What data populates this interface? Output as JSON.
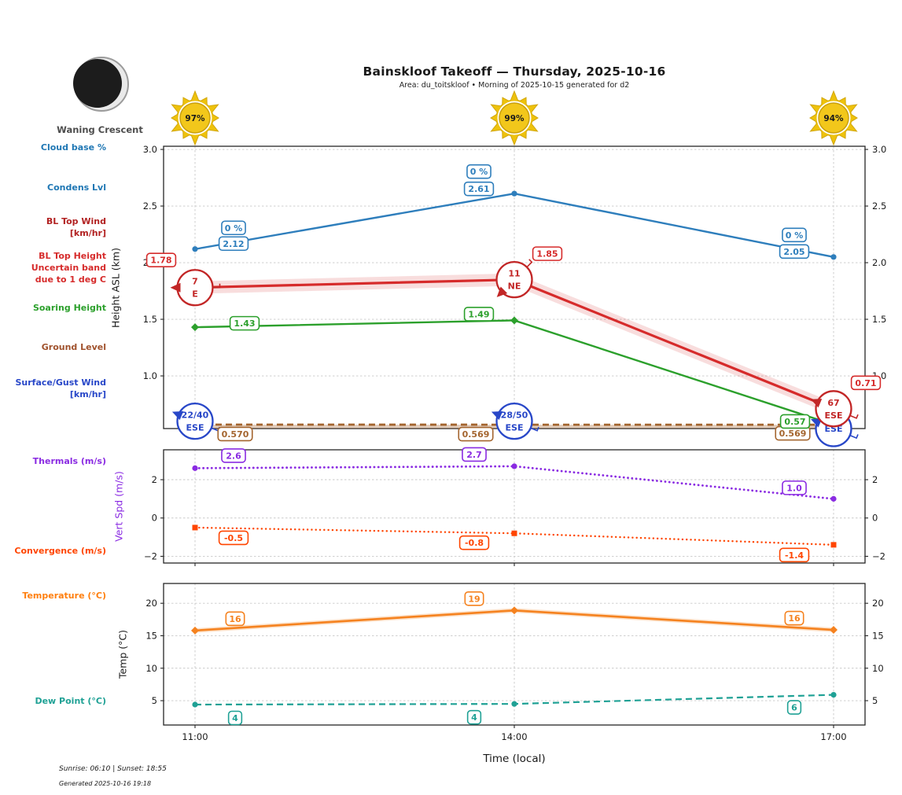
{
  "header": {
    "title": "Bainskloof Takeoff — Thursday, 2025-10-16",
    "subtitle": "Area: du_toitskloof • Morning of 2025-10-15 generated for d2"
  },
  "moon": {
    "phase_label": "Waning Crescent"
  },
  "suns": [
    {
      "time": "11:00",
      "percent": "97%"
    },
    {
      "time": "14:00",
      "percent": "99%"
    },
    {
      "time": "17:00",
      "percent": "94%"
    }
  ],
  "left_legend": [
    {
      "id": "cloud-base",
      "lines": [
        "Cloud base %"
      ],
      "color": "#1f77b4"
    },
    {
      "id": "condens-lvl",
      "lines": [
        "Condens Lvl"
      ],
      "color": "#1f77b4"
    },
    {
      "id": "bl-top-wind",
      "lines": [
        "BL Top Wind",
        "[km/hr]"
      ],
      "color": "#b22222"
    },
    {
      "id": "bl-top-height",
      "lines": [
        "BL Top Height",
        "Uncertain band",
        "due to 1 deg C"
      ],
      "color": "#d62b2b"
    },
    {
      "id": "soaring-height",
      "lines": [
        "Soaring Height"
      ],
      "color": "#2ca02c"
    },
    {
      "id": "ground-level",
      "lines": [
        "Ground Level"
      ],
      "color": "#a0522d"
    },
    {
      "id": "surface-gust-wind",
      "lines": [
        "Surface/Gust Wind",
        "[km/hr]"
      ],
      "color": "#2847c8"
    },
    {
      "id": "thermals",
      "lines": [
        "Thermals (m/s)"
      ],
      "color": "#8a2be2"
    },
    {
      "id": "convergence",
      "lines": [
        "Convergence (m/s)"
      ],
      "color": "#ff4500"
    },
    {
      "id": "temperature",
      "lines": [
        "Temperature (°C)"
      ],
      "color": "#ff7f0e"
    },
    {
      "id": "dew-point",
      "lines": [
        "Dew Point (°C)"
      ],
      "color": "#1fa195"
    }
  ],
  "x_axis": {
    "label": "Time (local)",
    "ticks": [
      "11:00",
      "14:00",
      "17:00"
    ]
  },
  "chart_data": [
    {
      "id": "height",
      "type": "line",
      "ylabel": "Height ASL (km)",
      "ylim": [
        0.535,
        3.028
      ],
      "yticks": [
        {
          "v": 3.0,
          "label": "3.0"
        },
        {
          "v": 2.5,
          "label": "2.5"
        },
        {
          "v": 2.0,
          "label": "2.0"
        },
        {
          "v": 1.5,
          "label": "1.5"
        },
        {
          "v": 1.0,
          "label": "1.0"
        }
      ],
      "categories": [
        "11:00",
        "14:00",
        "17:00"
      ],
      "grid": true,
      "series": [
        {
          "name": "ground-level",
          "legend": "Ground Level",
          "color": "#a4652f",
          "line": "dashed",
          "width": 2.8,
          "marker": "none",
          "fill_below": "rgba(164,101,47,0.32)",
          "values": [
            0.57,
            0.569,
            0.569
          ],
          "labels": [
            {
              "text": "0.570",
              "dx": 51,
              "dy": 12
            },
            {
              "text": "0.569",
              "dx": -49,
              "dy": 12
            },
            {
              "text": "0.569",
              "dx": -52,
              "dy": 11
            }
          ]
        },
        {
          "name": "condens-lvl",
          "legend": "Condens Lvl",
          "color": "#2e7ebc",
          "line": "solid",
          "width": 2.4,
          "marker": "circle",
          "values": [
            2.12,
            2.61,
            2.05
          ],
          "labels": [
            {
              "text": "2.12",
              "dx": 49,
              "dy": -7
            },
            {
              "text": "2.61",
              "dx": -45,
              "dy": -6
            },
            {
              "text": "2.05",
              "dx": -50,
              "dy": -7
            }
          ],
          "labels2": [
            {
              "text": "0 %",
              "dx": 49,
              "dy": -27
            },
            {
              "text": "0 %",
              "dx": -45,
              "dy": -28
            },
            {
              "text": "0 %",
              "dx": -50,
              "dy": -28
            }
          ]
        },
        {
          "name": "soaring-height",
          "legend": "Soaring Height",
          "color": "#2ca02c",
          "line": "solid",
          "width": 2.4,
          "marker": "diamond",
          "values": [
            1.43,
            1.49,
            0.57
          ],
          "labels": [
            {
              "text": "1.43",
              "dx": 63,
              "dy": -5
            },
            {
              "text": "1.49",
              "dx": -45,
              "dy": -8
            },
            {
              "text": "0.57",
              "dx": -49,
              "dy": -4
            }
          ]
        },
        {
          "name": "bl-top-height",
          "legend": "BL Top Height",
          "color": "#d62b2b",
          "line": "solid",
          "width": 3.2,
          "marker": "none",
          "band": 0.055,
          "band_color": "rgba(214,43,43,0.16)",
          "values": [
            1.78,
            1.85,
            0.71
          ],
          "labels": [
            {
              "text": "1.78",
              "dx": -43,
              "dy": -35
            },
            {
              "text": "1.85",
              "dx": 42,
              "dy": -33
            },
            {
              "text": "0.71",
              "dx": 41,
              "dy": -33
            }
          ]
        }
      ],
      "wind_markers": [
        {
          "name": "surface-gust-wind",
          "color": "#2847c8",
          "items": [
            {
              "speed": "22/40",
              "dir": "ESE",
              "toward": 292.5,
              "y": 0.6
            },
            {
              "speed": "28/50",
              "dir": "ESE",
              "toward": 292.5,
              "y": 0.6
            },
            {
              "speed": "",
              "dir": "ESE",
              "toward": 292.5,
              "y": 0.535
            }
          ]
        },
        {
          "name": "bl-top-wind",
          "color": "#c22626",
          "items": [
            {
              "speed": "7",
              "dir": "E",
              "toward": 270,
              "y": 1.78
            },
            {
              "speed": "11",
              "dir": "NE",
              "toward": 225,
              "y": 1.85
            },
            {
              "speed": "67",
              "dir": "ESE",
              "toward": 292.5,
              "y": 0.71
            }
          ]
        }
      ]
    },
    {
      "id": "vertspd",
      "type": "line",
      "ylabel": "Vert Spd (m/s)",
      "ylabel_color": "#8a2be2",
      "ylim": [
        -2.35,
        3.56
      ],
      "yticks": [
        {
          "v": 2,
          "label": "2"
        },
        {
          "v": 0,
          "label": "0"
        },
        {
          "v": -2,
          "label": "−2"
        }
      ],
      "categories": [
        "11:00",
        "14:00",
        "17:00"
      ],
      "grid": true,
      "series": [
        {
          "name": "thermals",
          "legend": "Thermals (m/s)",
          "color": "#8a2be2",
          "line": "dotted",
          "width": 2.8,
          "marker": "circle",
          "values": [
            2.6,
            2.7,
            1.0
          ],
          "labels": [
            {
              "text": "2.6",
              "dx": 49,
              "dy": -16
            },
            {
              "text": "2.7",
              "dx": -51,
              "dy": -15
            },
            {
              "text": "1.0",
              "dx": -50,
              "dy": -14
            }
          ]
        },
        {
          "name": "convergence",
          "legend": "Convergence (m/s)",
          "color": "#ff4500",
          "line": "dotted",
          "width": 2.4,
          "marker": "square",
          "values": [
            -0.5,
            -0.8,
            -1.4
          ],
          "labels": [
            {
              "text": "-0.5",
              "dx": 49,
              "dy": 13
            },
            {
              "text": "-0.8",
              "dx": -51,
              "dy": 12
            },
            {
              "text": "-1.4",
              "dx": -50,
              "dy": 13
            }
          ]
        }
      ]
    },
    {
      "id": "temp",
      "type": "line",
      "ylabel": "Temp (°C)",
      "ylim": [
        1.25,
        23.05
      ],
      "yticks": [
        {
          "v": 20,
          "label": "20"
        },
        {
          "v": 15,
          "label": "15"
        },
        {
          "v": 10,
          "label": "10"
        },
        {
          "v": 5,
          "label": "5"
        }
      ],
      "categories": [
        "11:00",
        "14:00",
        "17:00"
      ],
      "grid": true,
      "series": [
        {
          "name": "temperature",
          "legend": "Temperature (°C)",
          "color": "#f5821f",
          "line": "solid",
          "width": 2.6,
          "marker": "diamond",
          "band": 0.35,
          "band_color": "rgba(245,130,31,0.25)",
          "values": [
            15.8,
            18.9,
            15.9
          ],
          "labels": [
            {
              "text": "16",
              "dx": 51,
              "dy": -15
            },
            {
              "text": "19",
              "dx": -51,
              "dy": -15
            },
            {
              "text": "16",
              "dx": -50,
              "dy": -15
            }
          ]
        },
        {
          "name": "dew-point",
          "legend": "Dew Point (°C)",
          "color": "#1fa195",
          "line": "dashed",
          "width": 2.2,
          "marker": "circle",
          "values": [
            4.4,
            4.5,
            5.9
          ],
          "labels": [
            {
              "text": "4",
              "dx": 51,
              "dy": 17
            },
            {
              "text": "4",
              "dx": -51,
              "dy": 17
            },
            {
              "text": "6",
              "dx": -50,
              "dy": 16
            }
          ]
        }
      ]
    }
  ],
  "footer": {
    "sun_times": "Sunrise: 06:10 | Sunset: 18:55",
    "generated": "Generated 2025-10-16 19:18"
  }
}
